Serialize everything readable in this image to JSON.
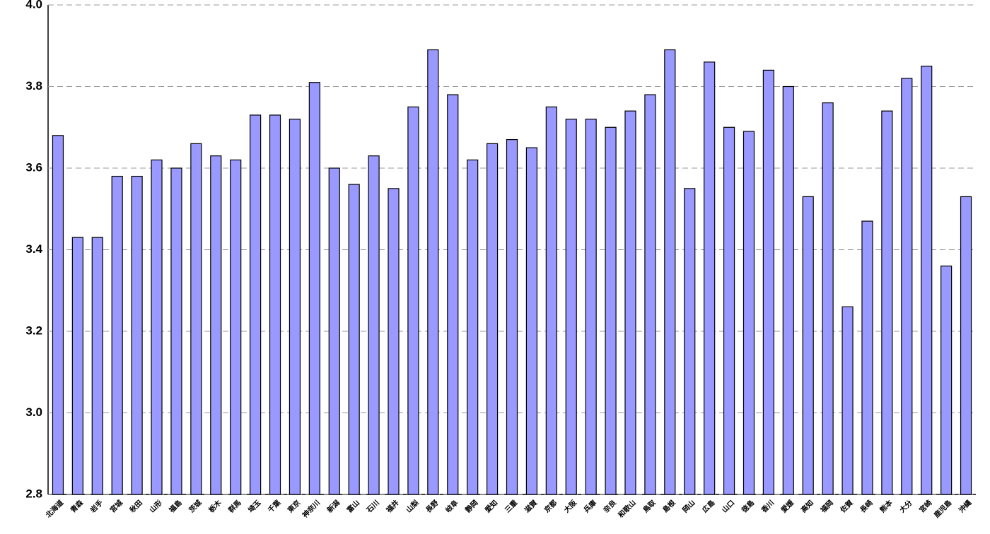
{
  "chart_data": {
    "type": "bar",
    "categories": [
      "北海道",
      "青森",
      "岩手",
      "宮城",
      "秋田",
      "山形",
      "福島",
      "茨城",
      "栃木",
      "群馬",
      "埼玉",
      "千葉",
      "東京",
      "神奈川",
      "新潟",
      "富山",
      "石川",
      "福井",
      "山梨",
      "長野",
      "岐阜",
      "静岡",
      "愛知",
      "三重",
      "滋賀",
      "京都",
      "大阪",
      "兵庫",
      "奈良",
      "和歌山",
      "鳥取",
      "島根",
      "岡山",
      "広島",
      "山口",
      "徳島",
      "香川",
      "愛媛",
      "高知",
      "福岡",
      "佐賀",
      "長崎",
      "熊本",
      "大分",
      "宮崎",
      "鹿児島",
      "沖縄"
    ],
    "values": [
      3.68,
      3.43,
      3.43,
      3.58,
      3.58,
      3.62,
      3.6,
      3.66,
      3.63,
      3.62,
      3.73,
      3.73,
      3.72,
      3.81,
      3.6,
      3.56,
      3.63,
      3.55,
      3.75,
      3.89,
      3.78,
      3.62,
      3.66,
      3.67,
      3.65,
      3.75,
      3.72,
      3.72,
      3.7,
      3.74,
      3.78,
      3.89,
      3.55,
      3.86,
      3.7,
      3.69,
      3.84,
      3.8,
      3.53,
      3.76,
      3.26,
      3.47,
      3.74,
      3.82,
      3.85,
      3.36,
      3.53
    ],
    "color": "#9999ff",
    "ylim": [
      2.8,
      4.0
    ],
    "yticks": [
      2.8,
      {
        "value": 3.0,
        "label": "3.0"
      },
      3.2,
      3.4,
      3.6,
      3.8,
      {
        "value": 4.0,
        "label": "4.0"
      }
    ],
    "grid": true
  }
}
